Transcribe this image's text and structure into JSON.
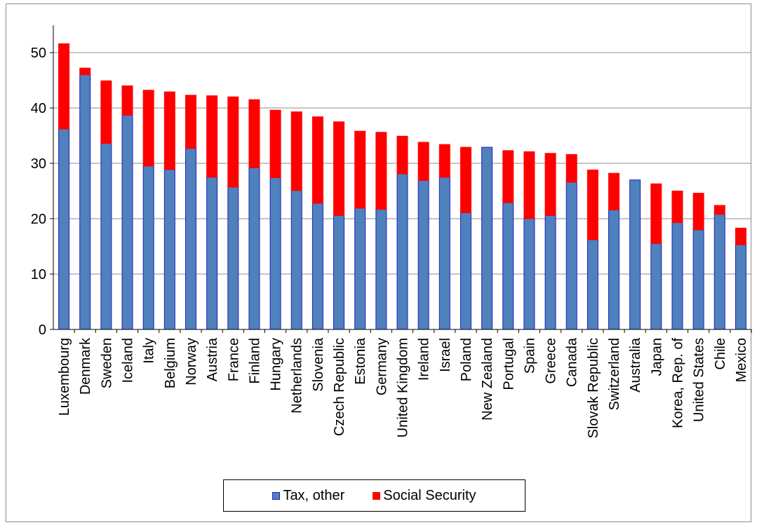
{
  "chart_data": {
    "type": "bar",
    "stacked": true,
    "categories": [
      "Luxembourg",
      "Denmark",
      "Sweden",
      "Iceland",
      "Italy",
      "Belgium",
      "Norway",
      "Austria",
      "France",
      "Finland",
      "Hungary",
      "Netherlands",
      "Slovenia",
      "Czech Republic",
      "Estonia",
      "Germany",
      "United Kingdom",
      "Ireland",
      "Israel",
      "Poland",
      "New Zealand",
      "Portugal",
      "Spain",
      "Greece",
      "Canada",
      "Slovak Republic",
      "Switzerland",
      "Australia",
      "Japan",
      "Korea, Rep. of",
      "United States",
      "Chile",
      "Mexico"
    ],
    "series": [
      {
        "name": "Tax, other",
        "color": "#4f81bd",
        "edge": "#1f1fbf",
        "values": [
          36.2,
          46.0,
          33.6,
          38.7,
          29.5,
          28.9,
          32.7,
          27.5,
          25.7,
          29.2,
          27.4,
          25.1,
          22.8,
          20.6,
          21.9,
          21.7,
          28.1,
          26.9,
          27.5,
          21.1,
          32.9,
          22.9,
          20.0,
          20.6,
          26.6,
          16.2,
          21.6,
          27.0,
          15.5,
          19.3,
          18.0,
          20.8,
          15.3
        ]
      },
      {
        "name": "Social Security",
        "color": "#ff0000",
        "edge": "#ff0000",
        "values": [
          15.4,
          1.2,
          11.3,
          5.3,
          13.7,
          14.0,
          9.6,
          14.7,
          16.3,
          12.3,
          12.2,
          14.2,
          15.6,
          16.9,
          13.9,
          13.9,
          6.8,
          6.9,
          5.9,
          11.8,
          0.0,
          9.4,
          12.1,
          11.2,
          5.0,
          12.6,
          6.6,
          0.0,
          10.8,
          5.7,
          6.6,
          1.6,
          3.0
        ]
      }
    ],
    "ylim": [
      0,
      55
    ],
    "yticks": [
      0,
      10,
      20,
      30,
      40,
      50
    ],
    "grid": true,
    "legend_placement": "bottom-center"
  }
}
